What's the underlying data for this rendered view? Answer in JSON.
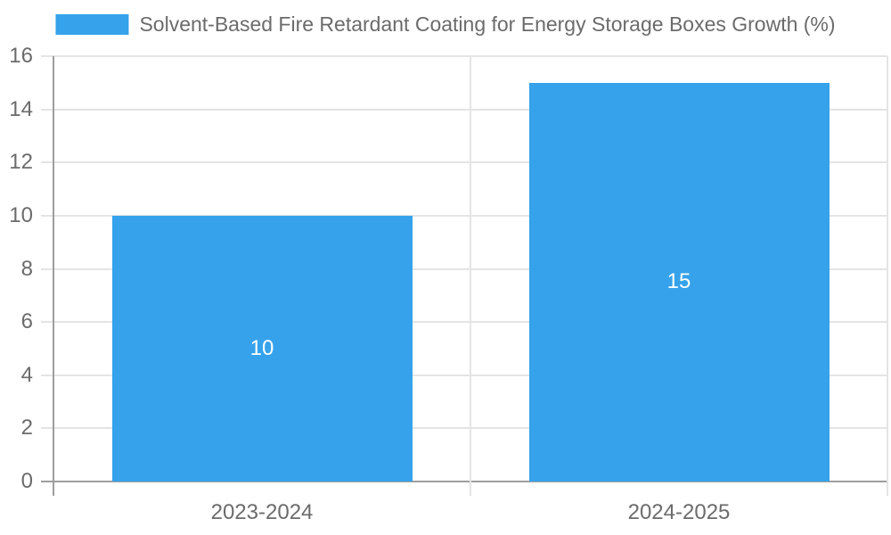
{
  "legend": {
    "label": "Solvent-Based Fire Retardant Coating for Energy Storage Boxes Growth (%)"
  },
  "colors": {
    "bar": "#36a2eb",
    "grid": "#e4e4e4",
    "axis_line": "#9e9e9e",
    "axis_text": "#6b6b6b",
    "value_label": "#ffffff",
    "background": "#ffffff"
  },
  "chart_data": {
    "type": "bar",
    "title": "Solvent-Based Fire Retardant Coating for Energy Storage Boxes Growth (%)",
    "categories": [
      "2023-2024",
      "2024-2025"
    ],
    "values": [
      10,
      15
    ],
    "bar_labels": [
      "10",
      "15"
    ],
    "xlabel": "",
    "ylabel": "",
    "ylim": [
      0,
      16
    ],
    "yticks": [
      0,
      2,
      4,
      6,
      8,
      10,
      12,
      14,
      16
    ],
    "grid": "on",
    "legend_position": "top-center",
    "series": [
      {
        "name": "Solvent-Based Fire Retardant Coating for Energy Storage Boxes Growth (%)",
        "values": [
          10,
          15
        ]
      }
    ]
  }
}
